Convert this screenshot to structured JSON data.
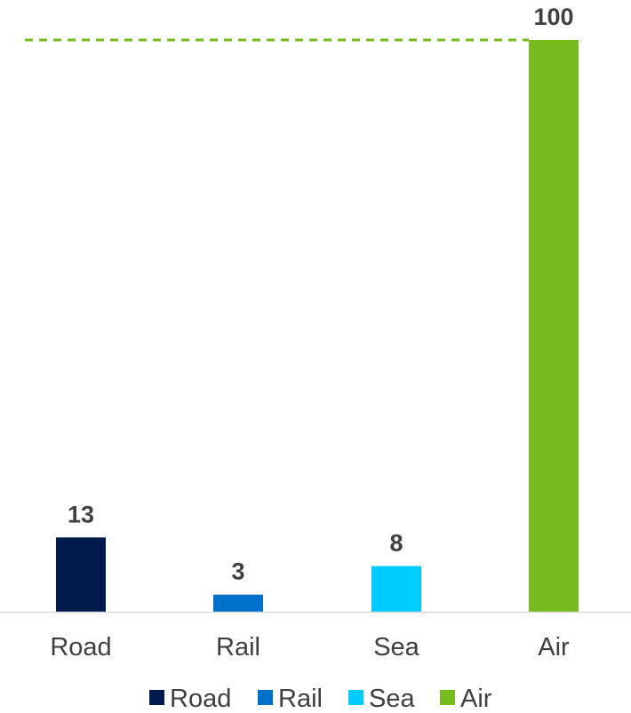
{
  "chart_data": {
    "type": "bar",
    "categories": [
      "Road",
      "Rail",
      "Sea",
      "Air"
    ],
    "values": [
      13,
      3,
      8,
      100
    ],
    "value_labels": [
      "13",
      "3",
      "8",
      "100"
    ],
    "colors": [
      "#001a4d",
      "#0070c9",
      "#00ccff",
      "#77bc1f"
    ],
    "reference_line": {
      "value": 100,
      "style": "dashed",
      "color": "#77bc1f"
    },
    "ylim": [
      0,
      100
    ],
    "grid": false,
    "legend": {
      "position": "bottom",
      "entries": [
        "Road",
        "Rail",
        "Sea",
        "Air"
      ]
    },
    "title": "",
    "xlabel": "",
    "ylabel": ""
  }
}
